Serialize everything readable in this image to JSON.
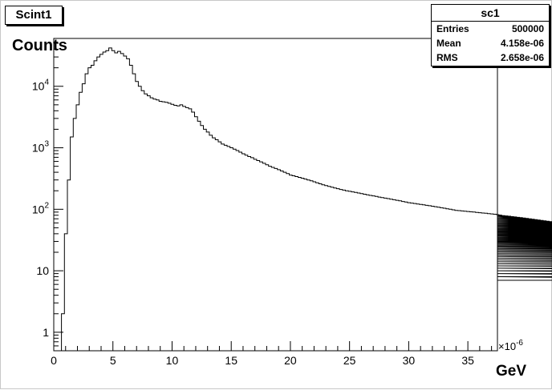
{
  "chart_data": {
    "type": "histogram",
    "title": "Scint1",
    "ylabel": "Counts",
    "xlabel": "GeV",
    "x_exponent_label": "×10",
    "x_exponent_power": "-6",
    "xlim": [
      0,
      37.5
    ],
    "ylim": [
      0.5,
      60000
    ],
    "yscale": "log",
    "xticks_major": [
      0,
      5,
      10,
      15,
      20,
      25,
      30,
      35
    ],
    "xtick_labels": [
      "0",
      "5",
      "10",
      "15",
      "20",
      "25",
      "30",
      "35"
    ],
    "yticks": [
      1,
      10,
      100,
      1000,
      10000
    ],
    "ytick_labels": [
      {
        "base": "1",
        "exp": ""
      },
      {
        "base": "10",
        "exp": ""
      },
      {
        "base": "10",
        "exp": "2"
      },
      {
        "base": "10",
        "exp": "3"
      },
      {
        "base": "10",
        "exp": "4"
      }
    ],
    "grid": false,
    "line_color": "#000000",
    "bins": {
      "x_start": 0.4,
      "width": 0.25,
      "values": [
        0.5,
        2,
        40,
        300,
        1500,
        3000,
        5000,
        8000,
        11000,
        16000,
        20000,
        22000,
        26000,
        30000,
        33000,
        36000,
        38000,
        42000,
        38000,
        35000,
        37000,
        34000,
        31000,
        28000,
        22000,
        16000,
        12000,
        10000,
        8500,
        7500,
        7000,
        6500,
        6200,
        6000,
        5700,
        5600,
        5500,
        5300,
        5100,
        4900,
        4800,
        5000,
        4700,
        4500,
        4300,
        3800,
        3200,
        2700,
        2300,
        2000,
        1800,
        1600,
        1450,
        1350,
        1250,
        1150,
        1100,
        1050,
        1000,
        950,
        900,
        850,
        800,
        760,
        720,
        690,
        650,
        620,
        590,
        560,
        530,
        500,
        480,
        460,
        440,
        420,
        400,
        380,
        360,
        350,
        340,
        330,
        320,
        310,
        300,
        290,
        280,
        270,
        260,
        250,
        242,
        235,
        228,
        222,
        216,
        210,
        205,
        200,
        196,
        192,
        188,
        184,
        180,
        176,
        172,
        168,
        165,
        162,
        158,
        155,
        152,
        149,
        146,
        143,
        140,
        137,
        134,
        131,
        128,
        126,
        124,
        122,
        120,
        118,
        116,
        114,
        112,
        110,
        108,
        106,
        104,
        102,
        100,
        98,
        96,
        95,
        94,
        93,
        92,
        91,
        90,
        89,
        88,
        87,
        86,
        85,
        84,
        83,
        82,
        81,
        80,
        79,
        78,
        77,
        76,
        75,
        74,
        73,
        72,
        71,
        70,
        69,
        68,
        67,
        66,
        65,
        64,
        63,
        62,
        61,
        60,
        59,
        58,
        57,
        56,
        55,
        54,
        53,
        52,
        51,
        50,
        49,
        48,
        47,
        46,
        45,
        44,
        43,
        42,
        41,
        40,
        39,
        38,
        37,
        36,
        35,
        35,
        34,
        34,
        33,
        33,
        32,
        32,
        31,
        31,
        30,
        30,
        29,
        29,
        28,
        28,
        27,
        27,
        26,
        26,
        25,
        25,
        24,
        24,
        23,
        23,
        22,
        22,
        21,
        21,
        20,
        20,
        19,
        19,
        18,
        18,
        17,
        17,
        16,
        16,
        15,
        15,
        15,
        14,
        14,
        14,
        13,
        13,
        13,
        12,
        12,
        12,
        11,
        11,
        11,
        10,
        10,
        10,
        9,
        9,
        9,
        8,
        8,
        8,
        7
      ]
    }
  },
  "stats": {
    "title": "sc1",
    "rows": [
      {
        "label": "Entries",
        "value": "500000"
      },
      {
        "label": "Mean",
        "value": "4.158e-06"
      },
      {
        "label": "RMS",
        "value": "2.658e-06"
      }
    ]
  }
}
